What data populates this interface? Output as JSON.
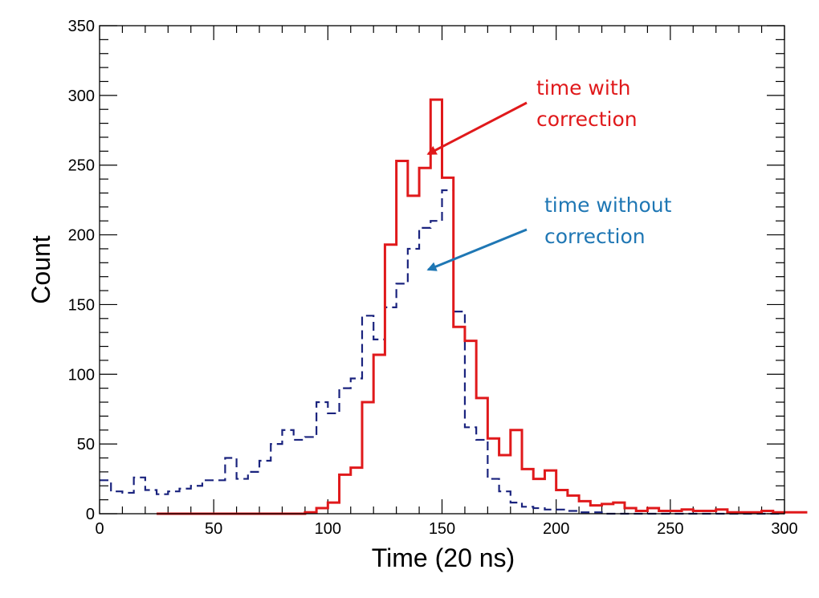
{
  "chart_data": {
    "type": "histogram",
    "xlabel": "Time (20 ns)",
    "ylabel": "Count",
    "xlim": [
      0,
      300
    ],
    "ylim": [
      0,
      350
    ],
    "x_major_ticks": [
      0,
      50,
      100,
      150,
      200,
      250,
      300
    ],
    "y_major_ticks": [
      0,
      50,
      100,
      150,
      200,
      250,
      300,
      350
    ],
    "x_tick_labels": [
      "0",
      "50",
      "100",
      "150",
      "200",
      "250",
      "300"
    ],
    "y_tick_labels": [
      "0",
      "50",
      "100",
      "150",
      "200",
      "250",
      "300",
      "350"
    ],
    "bin_width": 5,
    "series": [
      {
        "name": "time without correction",
        "style": "dashed",
        "color": "#1a237e",
        "bin_edges_start": 0,
        "values": [
          24,
          16,
          15,
          26,
          17,
          14,
          16,
          18,
          20,
          24,
          24,
          40,
          25,
          30,
          38,
          50,
          60,
          53,
          55,
          80,
          72,
          90,
          97,
          142,
          125,
          148,
          165,
          190,
          205,
          210,
          232,
          145,
          62,
          53,
          25,
          16,
          8,
          5,
          4,
          3,
          3,
          2,
          1,
          1,
          0,
          0,
          0,
          0,
          0,
          0,
          0,
          0,
          0,
          0,
          0,
          0,
          0,
          0,
          0,
          0
        ]
      },
      {
        "name": "time with correction",
        "style": "solid",
        "color": "#e0191b",
        "bin_edges_start": 25,
        "values": [
          0,
          0,
          0,
          0,
          0,
          0,
          0,
          0,
          0,
          0,
          0,
          0,
          0,
          1,
          4,
          8,
          28,
          33,
          80,
          114,
          193,
          253,
          228,
          248,
          297,
          241,
          134,
          124,
          83,
          54,
          42,
          60,
          32,
          25,
          31,
          17,
          13,
          9,
          6,
          7,
          8,
          4,
          2,
          4,
          2,
          2,
          3,
          2,
          2,
          3,
          1,
          1,
          1,
          2,
          1,
          1,
          1
        ]
      }
    ],
    "annotations": [
      {
        "text_lines": [
          "time with",
          "correction"
        ],
        "color": "#e0191b",
        "arrow_target": [
          145,
          258
        ]
      },
      {
        "text_lines": [
          "time without",
          "correction"
        ],
        "color": "#1f77b4",
        "arrow_target": [
          145,
          175
        ]
      }
    ]
  }
}
